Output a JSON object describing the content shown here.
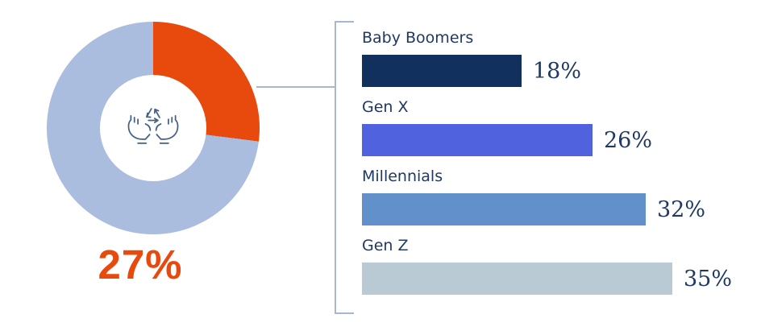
{
  "chart_data": {
    "type": "donut_with_bar_breakdown",
    "title": "",
    "donut": {
      "type": "donut",
      "values": [
        27,
        73
      ],
      "highlight_value": 27,
      "highlight_label": "27%",
      "highlight_color": "#E8490D",
      "rest_color": "#ABBDDE",
      "start_angle": "top",
      "direction": "clockwise",
      "center_icon": "hands-holding-recycle-icon"
    },
    "bars": {
      "type": "bar",
      "orientation": "horizontal",
      "categories": [
        "Baby Boomers",
        "Gen X",
        "Millennials",
        "Gen Z"
      ],
      "values": [
        18,
        26,
        32,
        35
      ],
      "value_labels": [
        "18%",
        "26%",
        "32%",
        "35%"
      ],
      "bar_colors": [
        "#12305E",
        "#5062DE",
        "#6190CA",
        "#BACAD4"
      ],
      "xlim": [
        0,
        40
      ],
      "grid": false,
      "value_label_position": "right-of-bar"
    }
  },
  "colors": {
    "background": "#FFFFFF",
    "label_text": "#1F3864",
    "value_text": "#1F3864",
    "connector_line": "#A6B7CF",
    "icon_stroke": "#436087",
    "accent_orange": "#E8490D"
  }
}
